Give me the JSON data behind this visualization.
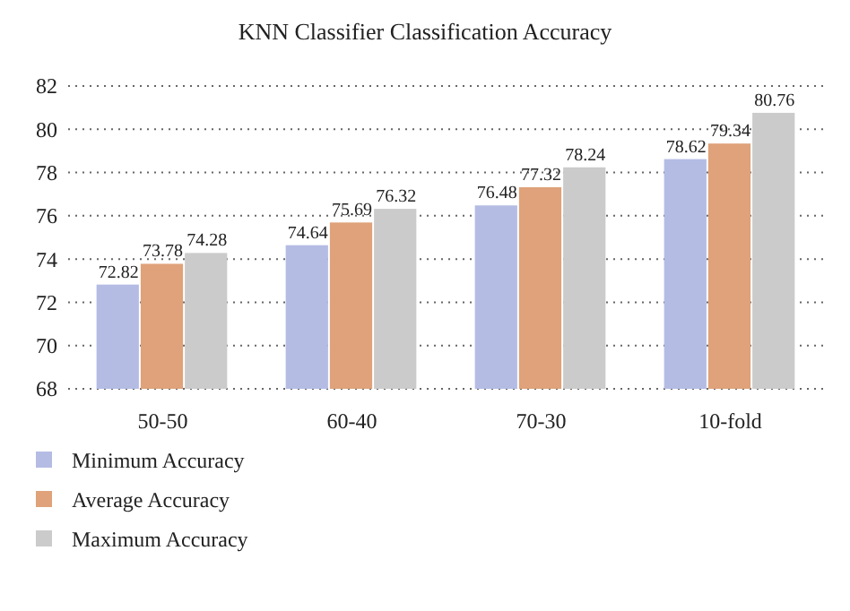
{
  "chart_data": {
    "type": "bar",
    "title": "KNN Classifier Classification Accuracy",
    "categories": [
      "50-50",
      "60-40",
      "70-30",
      "10-fold"
    ],
    "series": [
      {
        "name": "Minimum Accuracy",
        "color": "#b4bce4",
        "values": [
          72.82,
          74.64,
          76.48,
          78.62
        ]
      },
      {
        "name": "Average Accuracy",
        "color": "#dfa27a",
        "values": [
          73.78,
          75.69,
          77.32,
          79.34
        ]
      },
      {
        "name": "Maximum Accuracy",
        "color": "#cbcbcb",
        "values": [
          74.28,
          76.32,
          78.24,
          80.76
        ]
      }
    ],
    "ylim": [
      68,
      82
    ],
    "yticks": [
      68,
      70,
      72,
      74,
      76,
      78,
      80,
      82
    ],
    "grid": "y",
    "legend": "bottom",
    "data_labels": true
  }
}
